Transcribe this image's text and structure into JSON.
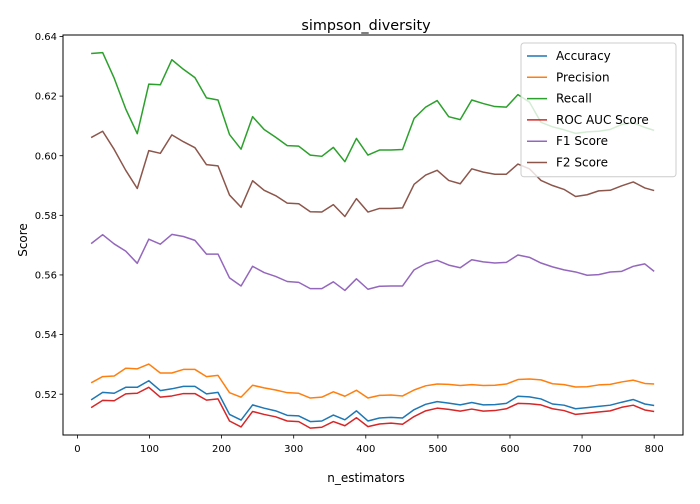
{
  "chart_data": {
    "type": "line",
    "title": "simpson_diversity",
    "xlabel": "n_estimators",
    "ylabel": "Score",
    "xlim": [
      -20,
      840
    ],
    "ylim": [
      0.5063,
      0.6405
    ],
    "xticks": [
      0,
      100,
      200,
      300,
      400,
      500,
      600,
      700,
      800
    ],
    "xtick_labels": [
      "0",
      "100",
      "200",
      "300",
      "400",
      "500",
      "600",
      "700",
      "800"
    ],
    "yticks": [
      0.52,
      0.54,
      0.56,
      0.58,
      0.6,
      0.62,
      0.64
    ],
    "ytick_labels": [
      "0.52",
      "0.54",
      "0.56",
      "0.58",
      "0.60",
      "0.62",
      "0.64"
    ],
    "grid": false,
    "legend_position": "top-right",
    "x": [
      19,
      35,
      51,
      67,
      83,
      99,
      115,
      131,
      147,
      163,
      179,
      195,
      211,
      227,
      243,
      259,
      275,
      291,
      307,
      323,
      339,
      355,
      371,
      387,
      403,
      419,
      435,
      451,
      467,
      483,
      499,
      515,
      531,
      547,
      563,
      579,
      595,
      611,
      627,
      643,
      659,
      675,
      691,
      707,
      723,
      739,
      755,
      771,
      787,
      800
    ],
    "series": [
      {
        "name": "Accuracy",
        "color": "#1f77b4",
        "values": [
          0.5181,
          0.5206,
          0.5203,
          0.5223,
          0.5223,
          0.5245,
          0.5212,
          0.5218,
          0.5226,
          0.5226,
          0.5201,
          0.5206,
          0.5132,
          0.5113,
          0.5164,
          0.5153,
          0.5144,
          0.5129,
          0.5127,
          0.5108,
          0.511,
          0.513,
          0.5114,
          0.5144,
          0.511,
          0.512,
          0.5122,
          0.512,
          0.5148,
          0.5166,
          0.5175,
          0.517,
          0.5164,
          0.5172,
          0.5164,
          0.5165,
          0.5169,
          0.5193,
          0.5191,
          0.5184,
          0.5167,
          0.5163,
          0.5151,
          0.5155,
          0.5159,
          0.5163,
          0.5173,
          0.5182,
          0.5167,
          0.5162
        ]
      },
      {
        "name": "Precision",
        "color": "#ff7f0e",
        "values": [
          0.5238,
          0.5259,
          0.5261,
          0.5287,
          0.5285,
          0.5301,
          0.5271,
          0.5271,
          0.5283,
          0.5283,
          0.5259,
          0.5263,
          0.5205,
          0.519,
          0.523,
          0.5221,
          0.5214,
          0.5205,
          0.5203,
          0.5187,
          0.519,
          0.5208,
          0.5193,
          0.5213,
          0.5187,
          0.5196,
          0.5197,
          0.5194,
          0.5214,
          0.5228,
          0.5234,
          0.5233,
          0.5229,
          0.5232,
          0.5229,
          0.523,
          0.5234,
          0.5249,
          0.5251,
          0.5248,
          0.5235,
          0.5232,
          0.5224,
          0.5225,
          0.5231,
          0.5233,
          0.5241,
          0.5247,
          0.5236,
          0.5234
        ]
      },
      {
        "name": "Recall",
        "color": "#2ca02c",
        "values": [
          0.6343,
          0.6346,
          0.626,
          0.6157,
          0.6074,
          0.624,
          0.6238,
          0.6322,
          0.629,
          0.6262,
          0.6194,
          0.6187,
          0.6071,
          0.6022,
          0.6131,
          0.6088,
          0.6062,
          0.6034,
          0.6032,
          0.6002,
          0.5998,
          0.6028,
          0.598,
          0.6058,
          0.6002,
          0.6019,
          0.6019,
          0.6021,
          0.6125,
          0.6163,
          0.6185,
          0.6131,
          0.6121,
          0.6187,
          0.6175,
          0.6165,
          0.6163,
          0.6205,
          0.618,
          0.6112,
          0.6097,
          0.6087,
          0.6075,
          0.608,
          0.6082,
          0.6088,
          0.6105,
          0.611,
          0.6095,
          0.6085
        ]
      },
      {
        "name": "ROC AUC Score",
        "color": "#d62728",
        "values": [
          0.5155,
          0.5179,
          0.5178,
          0.5201,
          0.5203,
          0.5223,
          0.519,
          0.5194,
          0.5202,
          0.5202,
          0.518,
          0.5184,
          0.511,
          0.509,
          0.5142,
          0.5132,
          0.5124,
          0.511,
          0.5108,
          0.5086,
          0.5089,
          0.5108,
          0.5094,
          0.5121,
          0.5091,
          0.51,
          0.5103,
          0.5099,
          0.5125,
          0.5144,
          0.5153,
          0.5149,
          0.5143,
          0.515,
          0.5143,
          0.5145,
          0.5151,
          0.5169,
          0.5168,
          0.5164,
          0.5151,
          0.5145,
          0.5132,
          0.5136,
          0.514,
          0.5144,
          0.5156,
          0.5163,
          0.5147,
          0.5142
        ]
      },
      {
        "name": "F1 Score",
        "color": "#9467bd",
        "values": [
          0.5705,
          0.5735,
          0.5704,
          0.568,
          0.5639,
          0.572,
          0.5703,
          0.5736,
          0.5729,
          0.5716,
          0.567,
          0.567,
          0.559,
          0.5563,
          0.5629,
          0.5608,
          0.5595,
          0.5578,
          0.5575,
          0.5554,
          0.5554,
          0.5577,
          0.5548,
          0.5587,
          0.5552,
          0.5562,
          0.5563,
          0.5563,
          0.5617,
          0.5638,
          0.5649,
          0.5633,
          0.5624,
          0.5651,
          0.5644,
          0.564,
          0.5642,
          0.5667,
          0.5659,
          0.564,
          0.5627,
          0.5617,
          0.561,
          0.5599,
          0.5601,
          0.561,
          0.5612,
          0.5629,
          0.5637,
          0.5612
        ]
      },
      {
        "name": "F2 Score",
        "color": "#8c564b",
        "values": [
          0.6061,
          0.6082,
          0.6021,
          0.5951,
          0.589,
          0.6017,
          0.6008,
          0.607,
          0.6047,
          0.6027,
          0.597,
          0.5966,
          0.5868,
          0.5827,
          0.5916,
          0.5884,
          0.5866,
          0.5841,
          0.5839,
          0.5812,
          0.5811,
          0.5836,
          0.5796,
          0.5856,
          0.5811,
          0.5823,
          0.5823,
          0.5825,
          0.5904,
          0.5935,
          0.5951,
          0.5917,
          0.5906,
          0.5956,
          0.5945,
          0.5938,
          0.5938,
          0.5972,
          0.5956,
          0.5917,
          0.59,
          0.5887,
          0.5863,
          0.5869,
          0.5882,
          0.5884,
          0.5899,
          0.5912,
          0.5892,
          0.5883
        ]
      }
    ]
  }
}
